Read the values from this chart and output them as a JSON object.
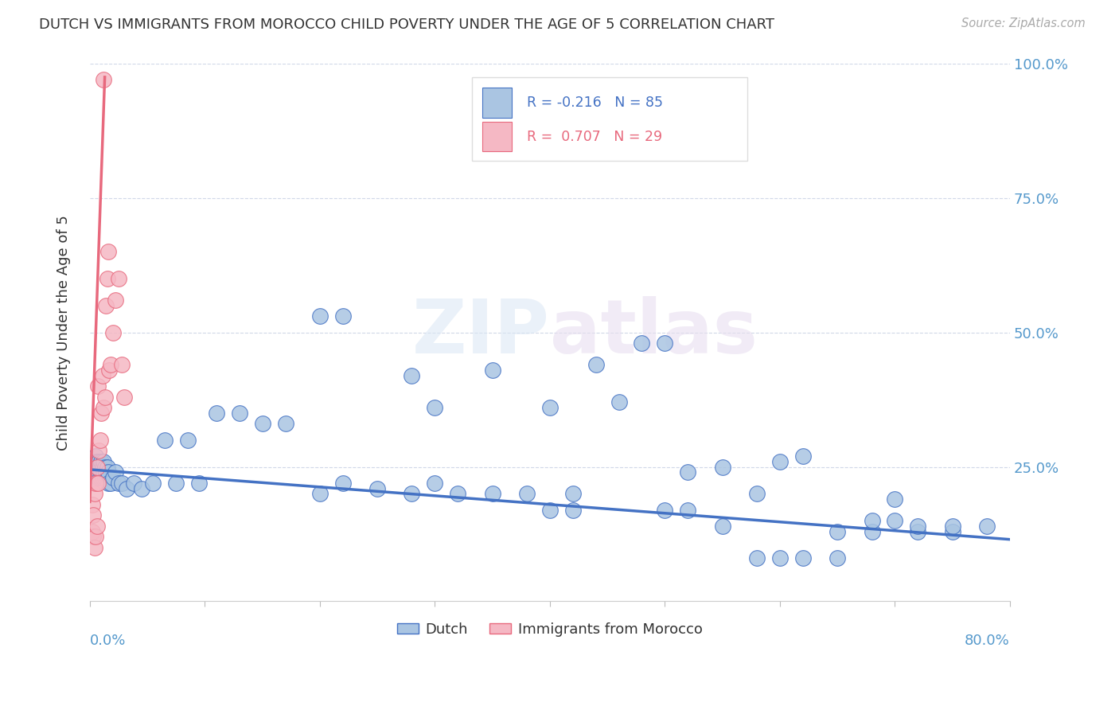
{
  "title": "DUTCH VS IMMIGRANTS FROM MOROCCO CHILD POVERTY UNDER THE AGE OF 5 CORRELATION CHART",
  "source": "Source: ZipAtlas.com",
  "ylabel": "Child Poverty Under the Age of 5",
  "legend_dutch_R": "-0.216",
  "legend_dutch_N": "85",
  "legend_morocco_R": "0.707",
  "legend_morocco_N": "29",
  "dutch_color": "#aac5e2",
  "morocco_color": "#f5b8c4",
  "dutch_line_color": "#4472c4",
  "morocco_line_color": "#e8697d",
  "xlim": [
    0.0,
    0.8
  ],
  "ylim": [
    0.0,
    1.0
  ],
  "dutch_x": [
    0.003,
    0.004,
    0.005,
    0.005,
    0.006,
    0.006,
    0.007,
    0.007,
    0.008,
    0.008,
    0.009,
    0.009,
    0.01,
    0.01,
    0.011,
    0.011,
    0.012,
    0.012,
    0.013,
    0.013,
    0.014,
    0.015,
    0.015,
    0.016,
    0.016,
    0.018,
    0.02,
    0.022,
    0.025,
    0.028,
    0.032,
    0.038,
    0.045,
    0.055,
    0.065,
    0.075,
    0.085,
    0.095,
    0.11,
    0.13,
    0.15,
    0.17,
    0.2,
    0.22,
    0.25,
    0.28,
    0.3,
    0.32,
    0.35,
    0.38,
    0.4,
    0.42,
    0.44,
    0.46,
    0.48,
    0.5,
    0.52,
    0.55,
    0.58,
    0.6,
    0.62,
    0.65,
    0.68,
    0.7,
    0.72,
    0.75,
    0.78,
    0.2,
    0.22,
    0.28,
    0.3,
    0.35,
    0.4,
    0.42,
    0.5,
    0.52,
    0.55,
    0.58,
    0.6,
    0.62,
    0.65,
    0.68,
    0.7,
    0.72,
    0.75
  ],
  "dutch_y": [
    0.26,
    0.24,
    0.27,
    0.25,
    0.26,
    0.24,
    0.25,
    0.23,
    0.26,
    0.24,
    0.25,
    0.23,
    0.26,
    0.24,
    0.25,
    0.23,
    0.26,
    0.24,
    0.25,
    0.23,
    0.24,
    0.25,
    0.23,
    0.24,
    0.22,
    0.22,
    0.23,
    0.24,
    0.22,
    0.22,
    0.21,
    0.22,
    0.21,
    0.22,
    0.3,
    0.22,
    0.3,
    0.22,
    0.35,
    0.35,
    0.33,
    0.33,
    0.2,
    0.22,
    0.21,
    0.2,
    0.36,
    0.2,
    0.2,
    0.2,
    0.36,
    0.2,
    0.44,
    0.37,
    0.48,
    0.48,
    0.24,
    0.25,
    0.2,
    0.26,
    0.27,
    0.13,
    0.13,
    0.19,
    0.13,
    0.13,
    0.14,
    0.53,
    0.53,
    0.42,
    0.22,
    0.43,
    0.17,
    0.17,
    0.17,
    0.17,
    0.14,
    0.08,
    0.08,
    0.08,
    0.08,
    0.15,
    0.15,
    0.14,
    0.14
  ],
  "morocco_x": [
    0.002,
    0.002,
    0.003,
    0.003,
    0.004,
    0.004,
    0.005,
    0.005,
    0.006,
    0.006,
    0.007,
    0.007,
    0.008,
    0.009,
    0.01,
    0.011,
    0.012,
    0.013,
    0.014,
    0.015,
    0.016,
    0.017,
    0.018,
    0.02,
    0.022,
    0.025,
    0.028,
    0.03,
    0.012
  ],
  "morocco_y": [
    0.18,
    0.13,
    0.16,
    0.12,
    0.2,
    0.1,
    0.22,
    0.12,
    0.25,
    0.14,
    0.4,
    0.22,
    0.28,
    0.3,
    0.35,
    0.42,
    0.36,
    0.38,
    0.55,
    0.6,
    0.65,
    0.43,
    0.44,
    0.5,
    0.56,
    0.6,
    0.44,
    0.38,
    0.97
  ],
  "dutch_trend_x": [
    0.0,
    0.8
  ],
  "dutch_trend_y": [
    0.245,
    0.115
  ],
  "morocco_trend_x": [
    0.0,
    0.013
  ],
  "morocco_trend_y": [
    0.185,
    0.975
  ]
}
